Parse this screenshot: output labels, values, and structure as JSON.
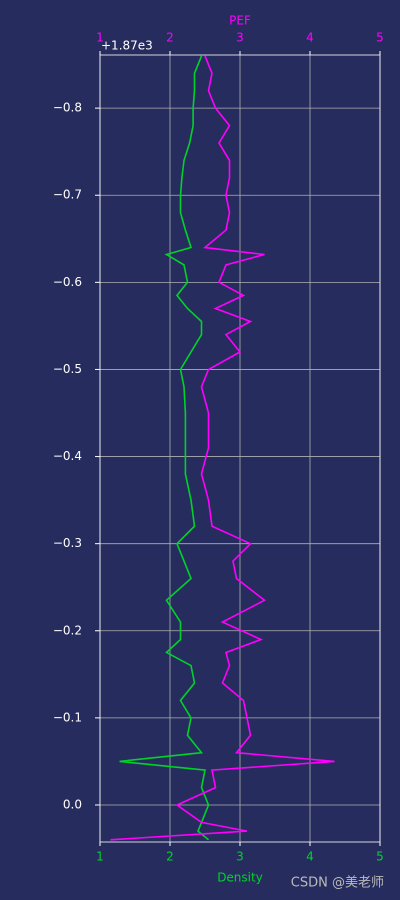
{
  "chart_data": {
    "type": "line",
    "x_label": "Density",
    "x2_label": "PEF",
    "y_offset_label": "+1.87e3",
    "watermark": "CSDN @美老师",
    "y": [
      -0.86,
      -0.84,
      -0.82,
      -0.8,
      -0.78,
      -0.76,
      -0.74,
      -0.72,
      -0.7,
      -0.68,
      -0.66,
      -0.64,
      -0.632,
      -0.62,
      -0.6,
      -0.585,
      -0.57,
      -0.555,
      -0.54,
      -0.52,
      -0.5,
      -0.48,
      -0.45,
      -0.41,
      -0.38,
      -0.35,
      -0.32,
      -0.3,
      -0.28,
      -0.26,
      -0.235,
      -0.21,
      -0.19,
      -0.175,
      -0.16,
      -0.14,
      -0.12,
      -0.1,
      -0.08,
      -0.06,
      -0.05,
      -0.04,
      -0.02,
      0.0,
      0.02,
      0.03,
      0.04
    ],
    "series": [
      {
        "name": "Density",
        "color": "#00d22a",
        "axis": "x",
        "values": [
          2.45,
          2.35,
          2.35,
          2.33,
          2.33,
          2.28,
          2.2,
          2.17,
          2.15,
          2.15,
          2.22,
          2.3,
          1.95,
          2.2,
          2.25,
          2.1,
          2.25,
          2.45,
          2.45,
          2.3,
          2.15,
          2.2,
          2.22,
          2.22,
          2.22,
          2.3,
          2.35,
          2.1,
          2.2,
          2.3,
          1.95,
          2.15,
          2.15,
          1.95,
          2.3,
          2.35,
          2.15,
          2.3,
          2.25,
          2.45,
          1.28,
          2.5,
          2.45,
          2.55,
          2.45,
          2.4,
          2.55
        ]
      },
      {
        "name": "PEF",
        "color": "#ff00ff",
        "axis": "x2",
        "values": [
          2.5,
          2.6,
          2.55,
          2.65,
          2.85,
          2.7,
          2.85,
          2.85,
          2.8,
          2.85,
          2.8,
          2.5,
          3.35,
          2.8,
          2.7,
          3.05,
          2.65,
          3.15,
          2.8,
          3.0,
          2.55,
          2.45,
          2.55,
          2.55,
          2.45,
          2.55,
          2.6,
          3.15,
          2.9,
          2.95,
          3.35,
          2.75,
          3.3,
          2.8,
          2.85,
          2.75,
          3.05,
          3.1,
          3.15,
          2.95,
          4.35,
          2.6,
          2.65,
          2.1,
          2.45,
          3.1,
          1.15
        ]
      }
    ],
    "xlim": [
      1,
      5
    ],
    "xticks": [
      1,
      2,
      3,
      4,
      5
    ],
    "x2lim": [
      1,
      5
    ],
    "x2ticks": [
      1,
      2,
      3,
      4,
      5
    ],
    "ylim": [
      0.0425,
      -0.861
    ],
    "yticks": [
      {
        "value": -0.8,
        "label": "−0.8"
      },
      {
        "value": -0.7,
        "label": "−0.7"
      },
      {
        "value": -0.6,
        "label": "−0.6"
      },
      {
        "value": -0.5,
        "label": "−0.5"
      },
      {
        "value": -0.4,
        "label": "−0.4"
      },
      {
        "value": -0.3,
        "label": "−0.3"
      },
      {
        "value": -0.2,
        "label": "−0.2"
      },
      {
        "value": -0.1,
        "label": "−0.1"
      },
      {
        "value": 0,
        "label": "0.0"
      }
    ],
    "grid": true,
    "background": "#262d5e"
  }
}
